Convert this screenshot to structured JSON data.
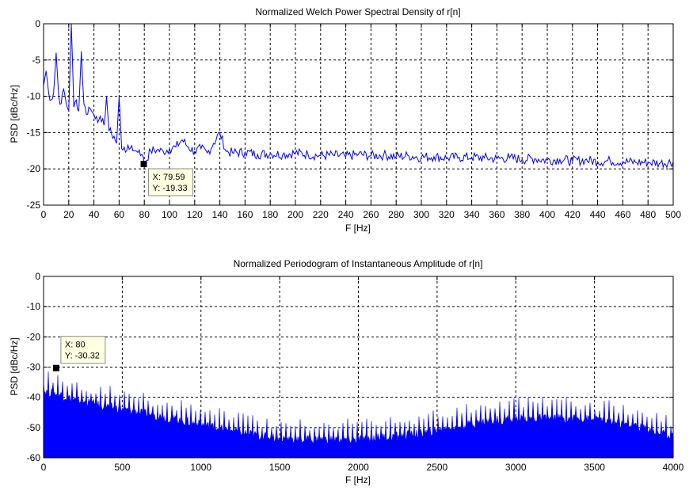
{
  "chart_data": [
    {
      "type": "line",
      "title": "Normalized Welch Power Spectral Density of r[n]",
      "xlabel": "F [Hz]",
      "ylabel": "PSD [dBc/Hz]",
      "xlim": [
        0,
        500
      ],
      "ylim": [
        -25,
        0
      ],
      "xticks": [
        0,
        20,
        40,
        60,
        80,
        100,
        120,
        140,
        160,
        180,
        200,
        220,
        240,
        260,
        280,
        300,
        320,
        340,
        360,
        380,
        400,
        420,
        440,
        460,
        480,
        500
      ],
      "yticks": [
        0,
        -5,
        -10,
        -15,
        -20,
        -25
      ],
      "grid": true,
      "color": "#0000ff",
      "series": [
        {
          "x": [
            0,
            2,
            4,
            6,
            8,
            10,
            12,
            14,
            16,
            18,
            20,
            22,
            24,
            26,
            28,
            30,
            32,
            34,
            36,
            38,
            40,
            42,
            44,
            46,
            48,
            50,
            52,
            54,
            56,
            58,
            60,
            62,
            64,
            66,
            68,
            70,
            72,
            74,
            76,
            78,
            80,
            85,
            90,
            95,
            100,
            105,
            110,
            115,
            120,
            125,
            130,
            135,
            140,
            145,
            150,
            160,
            170,
            180,
            190,
            200,
            210,
            220,
            230,
            240,
            250,
            260,
            270,
            280,
            290,
            300,
            310,
            320,
            330,
            340,
            350,
            360,
            370,
            380,
            390,
            400,
            410,
            420,
            430,
            440,
            450,
            460,
            470,
            480,
            490,
            500
          ],
          "y": [
            -8.5,
            -6.5,
            -9.5,
            -10.5,
            -9.5,
            -4.0,
            -10.0,
            -11.0,
            -9.0,
            -11.0,
            -12.0,
            0.0,
            -11.5,
            -10.5,
            -12.0,
            -3.8,
            -11.0,
            -12.5,
            -11.5,
            -12.0,
            -12.5,
            -12.8,
            -13.2,
            -13.5,
            -14.0,
            -10.0,
            -14.8,
            -15.2,
            -15.5,
            -16.5,
            -10.0,
            -17.2,
            -17.0,
            -17.5,
            -17.3,
            -16.8,
            -17.5,
            -17.6,
            -17.4,
            -18.0,
            -19.33,
            -17.5,
            -17.4,
            -17.6,
            -17.2,
            -17.0,
            -16.0,
            -17.0,
            -17.6,
            -17.2,
            -17.8,
            -16.5,
            -15.0,
            -17.6,
            -17.8,
            -17.7,
            -18.0,
            -17.9,
            -18.0,
            -17.8,
            -18.0,
            -18.2,
            -18.1,
            -18.3,
            -18.0,
            -18.2,
            -18.1,
            -18.3,
            -18.2,
            -18.4,
            -18.3,
            -18.5,
            -18.4,
            -18.4,
            -18.5,
            -18.6,
            -18.5,
            -18.7,
            -18.6,
            -18.8,
            -18.7,
            -18.9,
            -18.8,
            -19.0,
            -18.9,
            -19.0,
            -19.1,
            -19.1,
            -19.2,
            -19.0
          ]
        }
      ],
      "datatip": {
        "x_text": "X: 79.59",
        "y_text": "Y: -19.33",
        "x": 79.59,
        "y": -19.33
      }
    },
    {
      "type": "line",
      "title": "Normalized Periodogram of Instantaneous Amplitude of r[n]",
      "xlabel": "F [Hz]",
      "ylabel": "PSD [dBc/Hz]",
      "xlim": [
        0,
        4000
      ],
      "ylim": [
        -60,
        0
      ],
      "xticks": [
        0,
        500,
        1000,
        1500,
        2000,
        2500,
        3000,
        3500,
        4000
      ],
      "yticks": [
        0,
        -10,
        -20,
        -30,
        -40,
        -50,
        -60
      ],
      "grid": true,
      "color": "#0000ff",
      "style": "filled dense spectrum",
      "series": [
        {
          "x": [
            0,
            100,
            200,
            300,
            400,
            500,
            600,
            700,
            800,
            900,
            1000,
            1200,
            1400,
            1600,
            1800,
            2000,
            2200,
            2400,
            2600,
            2800,
            3000,
            3200,
            3400,
            3600,
            3800,
            4000
          ],
          "y": [
            -36,
            -37,
            -39,
            -40,
            -41,
            -42,
            -43,
            -44,
            -45,
            -46,
            -47,
            -49,
            -51,
            -52,
            -52,
            -52,
            -51,
            -50,
            -48,
            -46,
            -45,
            -45,
            -45,
            -46,
            -48,
            -51
          ]
        }
      ],
      "datatip": {
        "x_text": "X: 80",
        "y_text": "Y: -30.32",
        "x": 80,
        "y": -30.32
      }
    }
  ]
}
